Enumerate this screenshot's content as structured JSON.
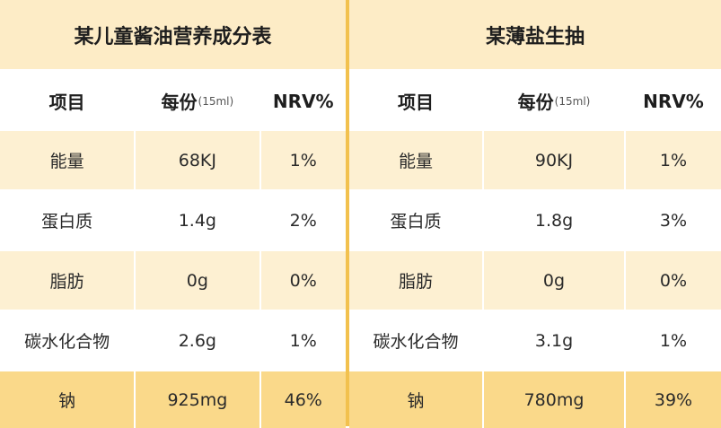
{
  "colors": {
    "title_bg": "#fdecc6",
    "header_bg": "#ffffff",
    "row_light": "#fdf0d2",
    "row_white": "#ffffff",
    "row_last": "#fad98a",
    "divider": "#f2c14e"
  },
  "tables": [
    {
      "title": "某儿童酱油营养成分表",
      "headers": {
        "item": "项目",
        "per": "每份",
        "per_unit": "(15ml)",
        "nrv": "NRV%"
      },
      "rows": [
        {
          "item": "能量",
          "value": "68KJ",
          "nrv": "1%"
        },
        {
          "item": "蛋白质",
          "value": "1.4g",
          "nrv": "2%"
        },
        {
          "item": "脂肪",
          "value": "0g",
          "nrv": "0%"
        },
        {
          "item": "碳水化合物",
          "value": "2.6g",
          "nrv": "1%"
        },
        {
          "item": "钠",
          "value": "925mg",
          "nrv": "46%"
        }
      ]
    },
    {
      "title": "某薄盐生抽",
      "headers": {
        "item": "项目",
        "per": "每份",
        "per_unit": "(15ml)",
        "nrv": "NRV%"
      },
      "rows": [
        {
          "item": "能量",
          "value": "90KJ",
          "nrv": "1%"
        },
        {
          "item": "蛋白质",
          "value": "1.8g",
          "nrv": "3%"
        },
        {
          "item": "脂肪",
          "value": "0g",
          "nrv": "0%"
        },
        {
          "item": "碳水化合物",
          "value": "3.1g",
          "nrv": "1%"
        },
        {
          "item": "钠",
          "value": "780mg",
          "nrv": "39%"
        }
      ]
    }
  ]
}
